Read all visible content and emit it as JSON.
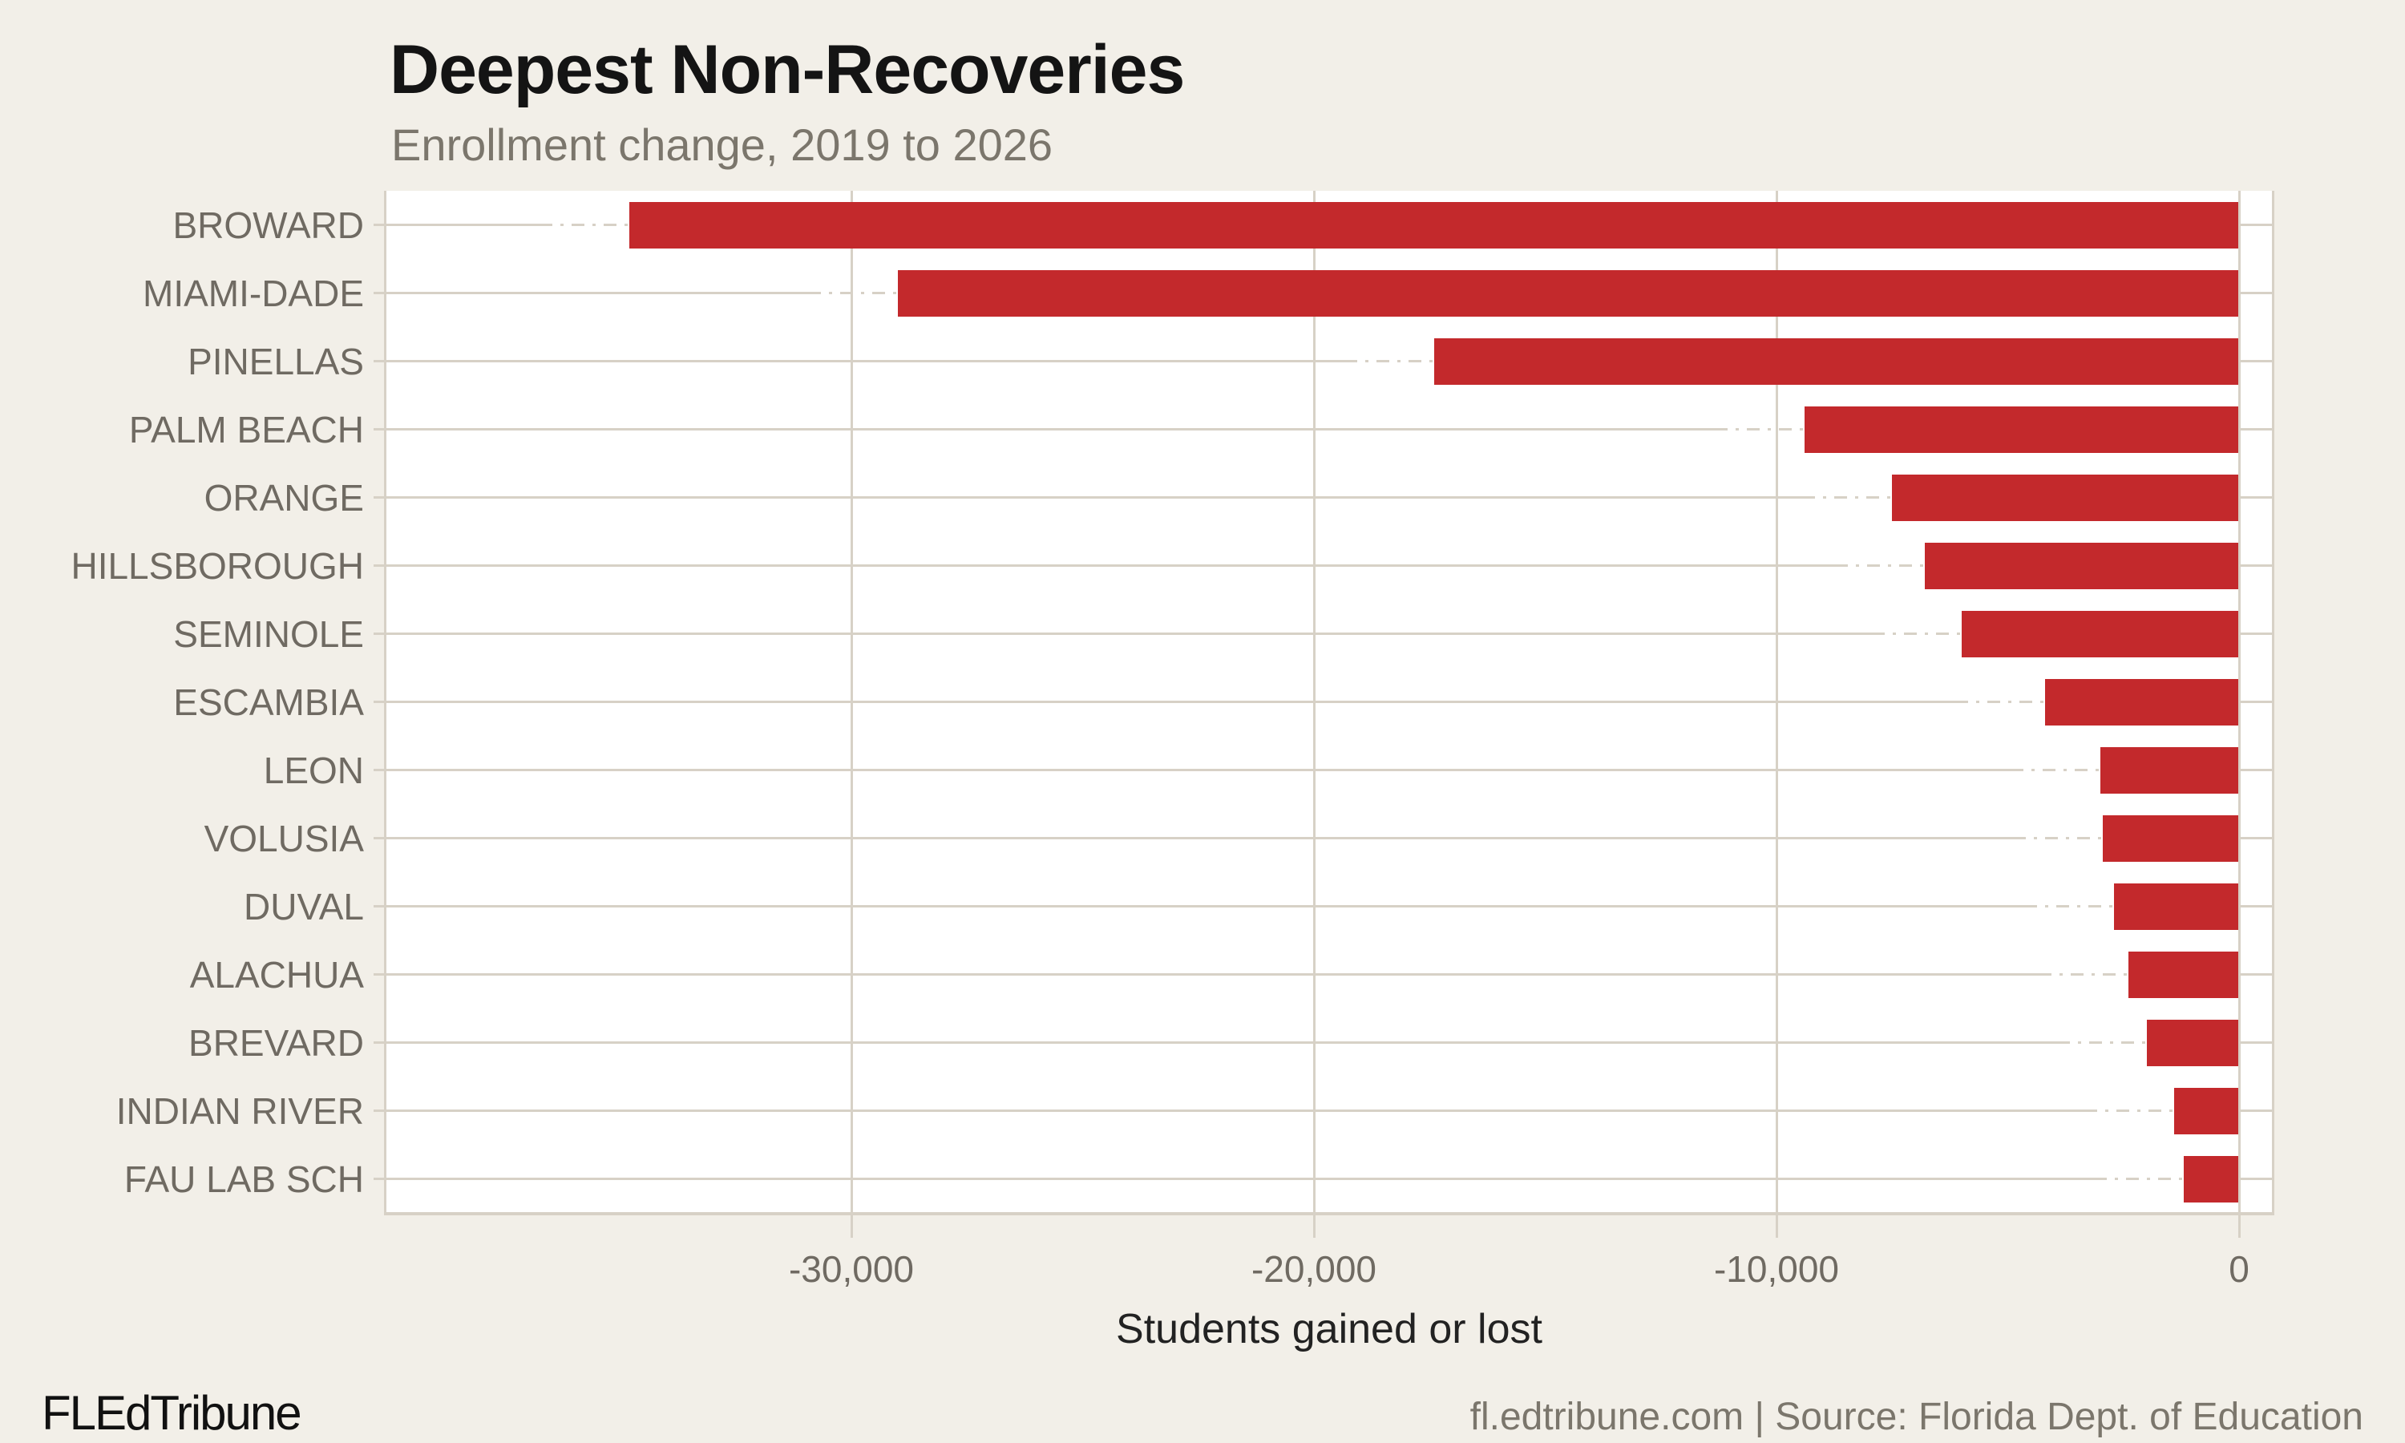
{
  "title": "Deepest Non-Recoveries",
  "subtitle": "Enrollment change, 2019 to 2026",
  "footer": {
    "brand": "FLEdTribune",
    "source": "fl.edtribune.com | Source: Florida Dept. of Education"
  },
  "colors": {
    "background": "#f2efe8",
    "plot_background": "#ffffff",
    "bar": "#c3292c",
    "grid": "#d7d1c6",
    "tick_label": "#6f6a62",
    "title": "#141414",
    "subtitle": "#7b766c"
  },
  "chart_data": {
    "type": "bar",
    "orientation": "horizontal",
    "title": "Deepest Non-Recoveries",
    "subtitle": "Enrollment change, 2019 to 2026",
    "xlabel": "Students gained or lost",
    "ylabel": "",
    "grid": true,
    "legend": false,
    "xlim": [
      -40200,
      700
    ],
    "categories": [
      "BROWARD",
      "MIAMI-DADE",
      "PINELLAS",
      "PALM BEACH",
      "ORANGE",
      "HILLSBOROUGH",
      "SEMINOLE",
      "ESCAMBIA",
      "LEON",
      "VOLUSIA",
      "DUVAL",
      "ALACHUA",
      "BREVARD",
      "INDIAN RIVER",
      "FAU LAB SCH"
    ],
    "values": [
      -34800,
      -29000,
      -17400,
      -9400,
      -7500,
      -6800,
      -6000,
      -4200,
      -3000,
      -2950,
      -2700,
      -2400,
      -2000,
      -1400,
      -1200
    ],
    "x_ticks": [
      {
        "value": -30000,
        "label": "-30,000"
      },
      {
        "value": -20000,
        "label": "-20,000"
      },
      {
        "value": -10000,
        "label": "-10,000"
      },
      {
        "value": 0,
        "label": "0"
      }
    ]
  }
}
